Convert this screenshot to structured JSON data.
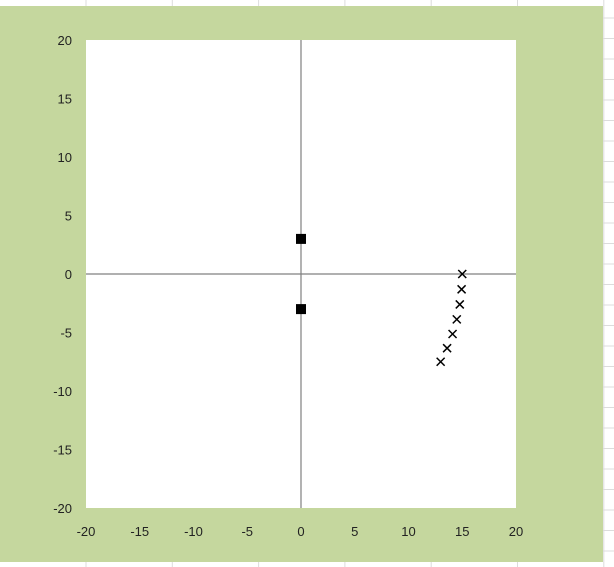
{
  "chart_data": {
    "type": "scatter",
    "title": "",
    "xlabel": "",
    "ylabel": "",
    "xlim": [
      -20,
      20
    ],
    "ylim": [
      -20,
      20
    ],
    "xticks": [
      -20,
      -15,
      -10,
      -5,
      0,
      5,
      10,
      15,
      20
    ],
    "yticks": [
      -20,
      -15,
      -10,
      -5,
      0,
      5,
      10,
      15,
      20
    ],
    "grid": false,
    "legend": "none",
    "series": [
      {
        "marker": "square",
        "color": "#000000",
        "points": [
          [
            0,
            3
          ],
          [
            0,
            -3
          ]
        ]
      },
      {
        "marker": "x",
        "color": "#000000",
        "points": [
          [
            15,
            0
          ],
          [
            14.94,
            -1.31
          ],
          [
            14.77,
            -2.6
          ],
          [
            14.49,
            -3.88
          ],
          [
            14.1,
            -5.13
          ],
          [
            13.59,
            -6.34
          ],
          [
            12.99,
            -7.5
          ]
        ]
      }
    ],
    "colors": {
      "chart_background": "#c5d79e",
      "plot_background": "#ffffff",
      "axis": "#808080"
    }
  }
}
